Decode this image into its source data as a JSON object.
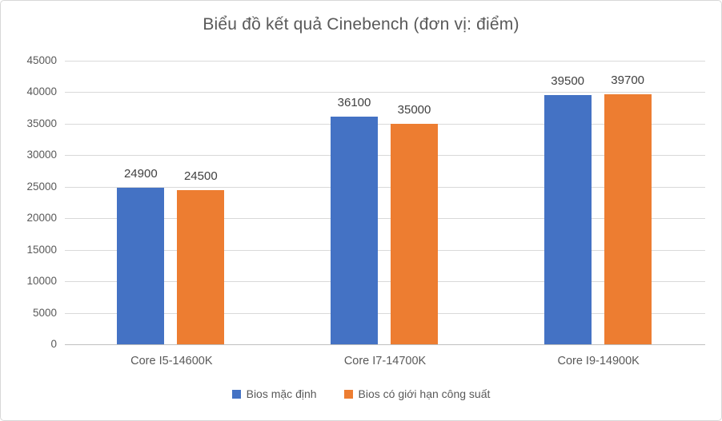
{
  "chart_data": {
    "type": "bar",
    "title": "Biểu đồ kết quả Cinebench (đơn vị: điểm)",
    "categories": [
      "Core I5-14600K",
      "Core I7-14700K",
      "Core I9-14900K"
    ],
    "series": [
      {
        "name": "Bios mặc định",
        "color": "#4472C4",
        "values": [
          24900,
          36100,
          39500
        ]
      },
      {
        "name": "Bios có giới hạn công suất",
        "color": "#ED7D31",
        "values": [
          24500,
          35000,
          39700
        ]
      }
    ],
    "ylim": [
      0,
      45000
    ],
    "yticks": [
      0,
      5000,
      10000,
      15000,
      20000,
      25000,
      30000,
      35000,
      40000,
      45000
    ],
    "grid": true,
    "legend_position": "bottom",
    "colors": {
      "title_text": "#595959",
      "axis_text": "#595959",
      "data_label_text": "#404040",
      "gridline": "#D9D9D9",
      "axis_line": "#BFBFBF"
    }
  }
}
